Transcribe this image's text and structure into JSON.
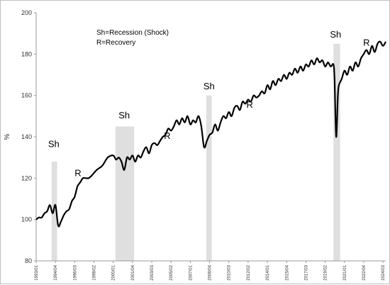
{
  "chart_data": {
    "type": "line",
    "title": "",
    "xlabel": "",
    "ylabel": "%",
    "ylim": [
      80,
      200
    ],
    "yticks": [
      80,
      100,
      120,
      140,
      160,
      180,
      200
    ],
    "grid": false,
    "legend_text": [
      "Sh=Recession (Shock)",
      "R=Recovery"
    ],
    "x_tick_labels": [
      "1993/01",
      "1994/04",
      "1996/03",
      "1998/02",
      "2000/01",
      "2001/04",
      "2003/03",
      "2005/02",
      "2007/01",
      "2008/04",
      "2010/03",
      "2012/02",
      "2014/01",
      "2015/04",
      "2017/03",
      "2019/02",
      "2021/01",
      "2022/04",
      "2024/03"
    ],
    "shaded_periods": [
      {
        "start": 1994.4,
        "end": 1994.9,
        "top": 128
      },
      {
        "start": 2000.2,
        "end": 2001.9,
        "top": 145
      },
      {
        "start": 2008.45,
        "end": 2008.95,
        "top": 160
      },
      {
        "start": 2020.0,
        "end": 2020.6,
        "top": 185
      }
    ],
    "annotations": [
      {
        "text": "Sh",
        "x": 1994.6,
        "y": 135
      },
      {
        "text": "R",
        "x": 1996.8,
        "y": 121
      },
      {
        "text": "Sh",
        "x": 2001.0,
        "y": 149
      },
      {
        "text": "R",
        "x": 2004.9,
        "y": 139
      },
      {
        "text": "Sh",
        "x": 2008.7,
        "y": 163
      },
      {
        "text": "R",
        "x": 2012.4,
        "y": 154
      },
      {
        "text": "Sh",
        "x": 2020.2,
        "y": 188
      },
      {
        "text": "R",
        "x": 2023.0,
        "y": 184
      }
    ],
    "series": [
      {
        "x": [
          1993.0,
          1993.25,
          1993.5,
          1993.75,
          1994.0,
          1994.25,
          1994.5,
          1994.75,
          1995.0,
          1995.25,
          1995.5,
          1995.75,
          1996.0,
          1996.25,
          1996.5,
          1996.75,
          1997.0,
          1997.25,
          1997.5,
          1997.75,
          1998.0,
          1998.5,
          1999.0,
          1999.5,
          2000.0,
          2000.25,
          2000.5,
          2000.75,
          2001.0,
          2001.25,
          2001.5,
          2001.75,
          2002.0,
          2002.25,
          2002.5,
          2002.75,
          2003.0,
          2003.25,
          2003.5,
          2003.75,
          2004.0,
          2004.25,
          2004.5,
          2004.75,
          2005.0,
          2005.25,
          2005.5,
          2005.75,
          2006.0,
          2006.25,
          2006.5,
          2006.75,
          2007.0,
          2007.25,
          2007.5,
          2007.75,
          2008.0,
          2008.25,
          2008.5,
          2008.75,
          2009.0,
          2009.25,
          2009.5,
          2009.75,
          2010.0,
          2010.25,
          2010.5,
          2010.75,
          2011.0,
          2011.25,
          2011.5,
          2011.75,
          2012.0,
          2012.25,
          2012.5,
          2012.75,
          2013.0,
          2013.25,
          2013.5,
          2013.75,
          2014.0,
          2014.25,
          2014.5,
          2014.75,
          2015.0,
          2015.25,
          2015.5,
          2015.75,
          2016.0,
          2016.25,
          2016.5,
          2016.75,
          2017.0,
          2017.25,
          2017.5,
          2017.75,
          2018.0,
          2018.25,
          2018.5,
          2018.75,
          2019.0,
          2019.25,
          2019.5,
          2019.75,
          2020.0,
          2020.1,
          2020.25,
          2020.4,
          2020.5,
          2020.75,
          2021.0,
          2021.25,
          2021.5,
          2021.75,
          2022.0,
          2022.25,
          2022.5,
          2022.75,
          2023.0,
          2023.25,
          2023.5,
          2023.75,
          2024.0,
          2024.25,
          2024.5,
          2024.75
        ],
        "y": [
          100,
          101,
          101,
          103,
          104,
          107,
          103,
          107,
          97,
          99,
          102,
          104,
          105,
          109,
          111,
          116,
          118,
          120,
          120,
          120,
          121,
          124,
          126,
          130,
          131,
          129,
          130,
          128,
          124,
          130,
          129,
          131,
          128,
          131,
          130,
          133,
          135,
          132,
          136,
          137,
          136,
          138,
          140,
          141,
          144,
          143,
          145,
          148,
          146,
          149,
          147,
          150,
          146,
          148,
          147,
          150,
          145,
          135,
          138,
          141,
          142,
          146,
          143,
          147,
          150,
          149,
          152,
          150,
          154,
          155,
          153,
          157,
          156,
          158,
          157,
          160,
          159,
          160,
          162,
          161,
          165,
          163,
          167,
          165,
          168,
          167,
          170,
          168,
          171,
          170,
          173,
          171,
          174,
          172,
          175,
          174,
          177,
          175,
          178,
          176,
          177,
          174,
          176,
          174,
          175,
          168,
          140,
          160,
          165,
          168,
          172,
          170,
          174,
          172,
          176,
          174,
          178,
          180,
          182,
          180,
          184,
          181,
          185,
          186,
          184,
          186
        ]
      }
    ]
  }
}
